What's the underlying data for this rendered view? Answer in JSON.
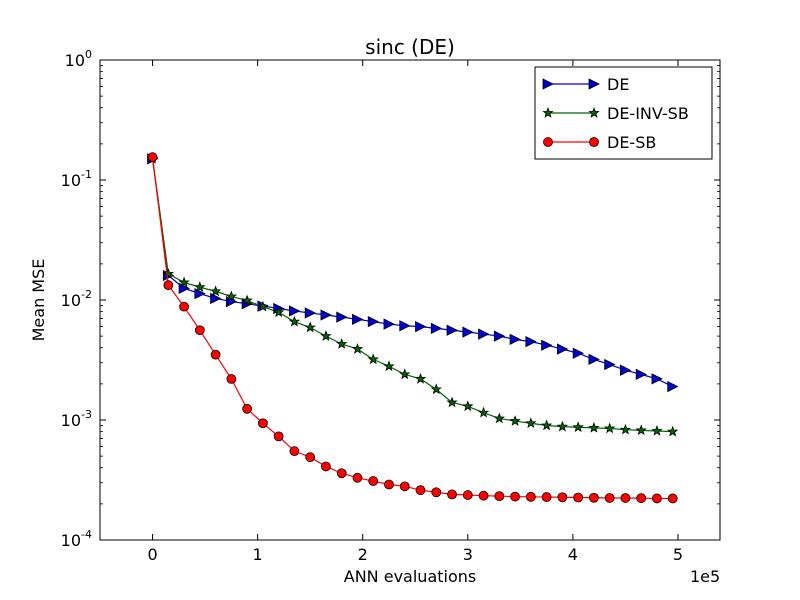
{
  "chart_data": {
    "type": "line",
    "title": "sinc (DE)",
    "xlabel": "ANN evaluations",
    "ylabel": "Mean MSE",
    "x_scale_label": "1e5",
    "xlim": [
      -0.5,
      5.4
    ],
    "ylim": [
      0.0001,
      1
    ],
    "yscale": "log",
    "x_ticks": [
      {
        "value": 0,
        "label": "0"
      },
      {
        "value": 1,
        "label": "1"
      },
      {
        "value": 2,
        "label": "2"
      },
      {
        "value": 3,
        "label": "3"
      },
      {
        "value": 4,
        "label": "4"
      },
      {
        "value": 5,
        "label": "5"
      }
    ],
    "y_ticks": [
      {
        "value": 1,
        "base": "10",
        "exp": "0"
      },
      {
        "value": 0.1,
        "base": "10",
        "exp": "-1"
      },
      {
        "value": 0.01,
        "base": "10",
        "exp": "-2"
      },
      {
        "value": 0.001,
        "base": "10",
        "exp": "-3"
      },
      {
        "value": 0.0001,
        "base": "10",
        "exp": "-4"
      }
    ],
    "legend_position": "top-right",
    "series": [
      {
        "name": "DE",
        "color": "#0000cc",
        "marker": "triangle-right",
        "points": [
          [
            0.0,
            0.15
          ],
          [
            0.15,
            0.016
          ],
          [
            0.3,
            0.0125
          ],
          [
            0.45,
            0.0113
          ],
          [
            0.6,
            0.0103
          ],
          [
            0.75,
            0.0097
          ],
          [
            0.9,
            0.0093
          ],
          [
            1.05,
            0.0089
          ],
          [
            1.2,
            0.0085
          ],
          [
            1.35,
            0.0081
          ],
          [
            1.5,
            0.0078
          ],
          [
            1.65,
            0.0075
          ],
          [
            1.8,
            0.0072
          ],
          [
            1.95,
            0.0069
          ],
          [
            2.1,
            0.0066
          ],
          [
            2.25,
            0.0063
          ],
          [
            2.4,
            0.0061
          ],
          [
            2.55,
            0.006
          ],
          [
            2.7,
            0.0058
          ],
          [
            2.85,
            0.0056
          ],
          [
            3.0,
            0.0054
          ],
          [
            3.15,
            0.0052
          ],
          [
            3.3,
            0.005
          ],
          [
            3.45,
            0.0047
          ],
          [
            3.6,
            0.0045
          ],
          [
            3.75,
            0.0042
          ],
          [
            3.9,
            0.0039
          ],
          [
            4.05,
            0.0036
          ],
          [
            4.2,
            0.0032
          ],
          [
            4.35,
            0.0029
          ],
          [
            4.5,
            0.0026
          ],
          [
            4.65,
            0.0024
          ],
          [
            4.8,
            0.0022
          ],
          [
            4.95,
            0.0019
          ]
        ]
      },
      {
        "name": "DE-INV-SB",
        "color": "#006600",
        "marker": "star",
        "points": [
          [
            0.0,
            0.15
          ],
          [
            0.15,
            0.0165
          ],
          [
            0.3,
            0.014
          ],
          [
            0.45,
            0.0128
          ],
          [
            0.6,
            0.0118
          ],
          [
            0.75,
            0.0107
          ],
          [
            0.9,
            0.0099
          ],
          [
            1.05,
            0.0088
          ],
          [
            1.2,
            0.0079
          ],
          [
            1.35,
            0.0066
          ],
          [
            1.5,
            0.0059
          ],
          [
            1.65,
            0.005
          ],
          [
            1.8,
            0.0043
          ],
          [
            1.95,
            0.0039
          ],
          [
            2.1,
            0.0032
          ],
          [
            2.25,
            0.0028
          ],
          [
            2.4,
            0.0024
          ],
          [
            2.55,
            0.0022
          ],
          [
            2.7,
            0.0018
          ],
          [
            2.85,
            0.0014
          ],
          [
            3.0,
            0.0013
          ],
          [
            3.15,
            0.00115
          ],
          [
            3.3,
            0.00103
          ],
          [
            3.45,
            0.00098
          ],
          [
            3.6,
            0.00094
          ],
          [
            3.75,
            0.0009
          ],
          [
            3.9,
            0.00088
          ],
          [
            4.05,
            0.00087
          ],
          [
            4.2,
            0.00086
          ],
          [
            4.35,
            0.00085
          ],
          [
            4.5,
            0.00083
          ],
          [
            4.65,
            0.00082
          ],
          [
            4.8,
            0.00081
          ],
          [
            4.95,
            0.0008
          ]
        ]
      },
      {
        "name": "DE-SB",
        "color": "#ff0000",
        "marker": "circle",
        "points": [
          [
            0.0,
            0.155
          ],
          [
            0.15,
            0.0133
          ],
          [
            0.3,
            0.0088
          ],
          [
            0.45,
            0.0056
          ],
          [
            0.6,
            0.0035
          ],
          [
            0.75,
            0.0022
          ],
          [
            0.9,
            0.00124
          ],
          [
            1.05,
            0.00094
          ],
          [
            1.2,
            0.00073
          ],
          [
            1.35,
            0.00055
          ],
          [
            1.5,
            0.00049
          ],
          [
            1.65,
            0.00041
          ],
          [
            1.8,
            0.00036
          ],
          [
            1.95,
            0.00033
          ],
          [
            2.1,
            0.00031
          ],
          [
            2.25,
            0.00029
          ],
          [
            2.4,
            0.00028
          ],
          [
            2.55,
            0.00026
          ],
          [
            2.7,
            0.00025
          ],
          [
            2.85,
            0.00024
          ],
          [
            3.0,
            0.000237
          ],
          [
            3.15,
            0.000234
          ],
          [
            3.3,
            0.000232
          ],
          [
            3.45,
            0.00023
          ],
          [
            3.6,
            0.000229
          ],
          [
            3.75,
            0.000228
          ],
          [
            3.9,
            0.000227
          ],
          [
            4.05,
            0.000226
          ],
          [
            4.2,
            0.000225
          ],
          [
            4.35,
            0.000224
          ],
          [
            4.5,
            0.000224
          ],
          [
            4.65,
            0.000223
          ],
          [
            4.8,
            0.000222
          ],
          [
            4.95,
            0.000222
          ]
        ]
      }
    ]
  }
}
